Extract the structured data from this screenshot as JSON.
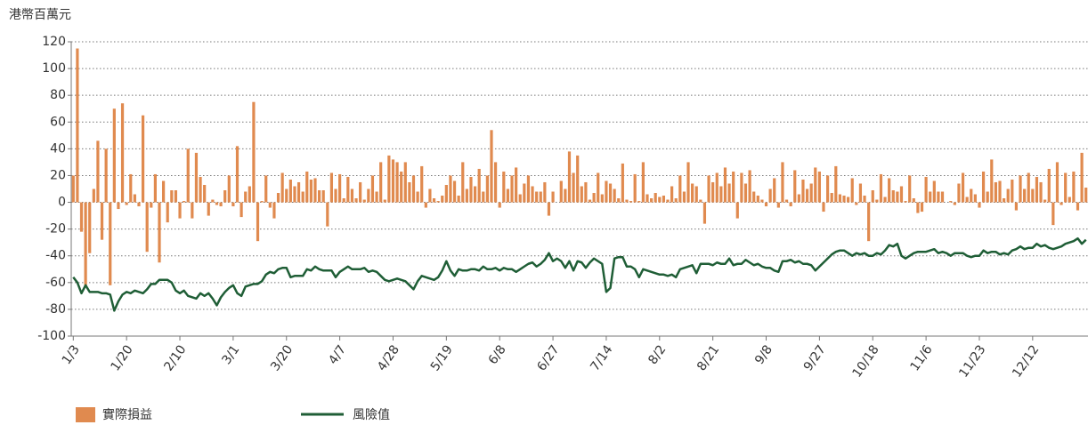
{
  "chart_data": {
    "type": "bar",
    "ylabel": "港幣百萬元",
    "categories": [
      "1/3",
      null,
      null,
      null,
      null,
      null,
      null,
      null,
      null,
      null,
      null,
      null,
      null,
      "1/20",
      null,
      null,
      null,
      null,
      null,
      null,
      null,
      null,
      null,
      null,
      null,
      null,
      "2/10",
      null,
      null,
      null,
      null,
      null,
      null,
      null,
      null,
      null,
      null,
      null,
      null,
      "3/1",
      null,
      null,
      null,
      null,
      null,
      null,
      null,
      null,
      null,
      null,
      null,
      null,
      "3/20",
      null,
      null,
      null,
      null,
      null,
      null,
      null,
      null,
      null,
      null,
      null,
      null,
      "4/7",
      null,
      null,
      null,
      null,
      null,
      null,
      null,
      null,
      null,
      null,
      null,
      null,
      "4/28",
      null,
      null,
      null,
      null,
      null,
      null,
      null,
      null,
      null,
      null,
      null,
      null,
      "5/19",
      null,
      null,
      null,
      null,
      null,
      null,
      null,
      null,
      null,
      null,
      null,
      null,
      "6/8",
      null,
      null,
      null,
      null,
      null,
      null,
      null,
      null,
      null,
      null,
      null,
      null,
      "6/27",
      null,
      null,
      null,
      null,
      null,
      null,
      null,
      null,
      null,
      null,
      null,
      null,
      "7/14",
      null,
      null,
      null,
      null,
      null,
      null,
      null,
      null,
      null,
      null,
      null,
      null,
      "8/2",
      null,
      null,
      null,
      null,
      null,
      null,
      null,
      null,
      null,
      null,
      null,
      null,
      "8/21",
      null,
      null,
      null,
      null,
      null,
      null,
      null,
      null,
      null,
      null,
      null,
      null,
      "9/8",
      null,
      null,
      null,
      null,
      null,
      null,
      null,
      null,
      null,
      null,
      null,
      null,
      "9/27",
      null,
      null,
      null,
      null,
      null,
      null,
      null,
      null,
      null,
      null,
      null,
      null,
      "10/18",
      null,
      null,
      null,
      null,
      null,
      null,
      null,
      null,
      null,
      null,
      null,
      null,
      "11/6",
      null,
      null,
      null,
      null,
      null,
      null,
      null,
      null,
      null,
      null,
      null,
      null,
      "11/23",
      null,
      null,
      null,
      null,
      null,
      null,
      null,
      null,
      null,
      null,
      null,
      null,
      "12/12",
      null,
      null,
      null,
      null,
      null,
      null,
      null,
      null,
      null,
      null,
      null,
      null,
      null
    ],
    "series": [
      {
        "name": "實際損益",
        "type": "bar",
        "color": "#e08a4f",
        "values": [
          20,
          115,
          -22,
          -62,
          -38,
          10,
          46,
          -28,
          40,
          -62,
          70,
          -5,
          74,
          -2,
          21,
          6,
          -3,
          65,
          -37,
          -4,
          21,
          -45,
          16,
          -15,
          9,
          9,
          -12,
          1,
          40,
          -12,
          37,
          19,
          13,
          -10,
          2,
          -2,
          -3,
          9,
          20,
          -3,
          42,
          -11,
          8,
          12,
          75,
          -29,
          1,
          20,
          -4,
          -12,
          7,
          22,
          10,
          17,
          12,
          15,
          8,
          23,
          17,
          18,
          9,
          9,
          -18,
          22,
          10,
          21,
          3,
          19,
          10,
          3,
          15,
          2,
          10,
          20,
          8,
          30,
          2,
          35,
          32,
          30,
          23,
          30,
          15,
          20,
          8,
          27,
          -4,
          10,
          3,
          1,
          5,
          13,
          20,
          16,
          5,
          30,
          10,
          19,
          12,
          25,
          8,
          20,
          54,
          30,
          -4,
          23,
          10,
          20,
          26,
          6,
          14,
          20,
          12,
          8,
          8,
          15,
          -10,
          8,
          0,
          16,
          10,
          38,
          22,
          35,
          12,
          15,
          2,
          7,
          22,
          6,
          16,
          14,
          10,
          3,
          29,
          2,
          1,
          21,
          1,
          30,
          6,
          3,
          7,
          4,
          5,
          2,
          12,
          3,
          20,
          8,
          30,
          14,
          12,
          2,
          -16,
          20,
          15,
          22,
          12,
          26,
          14,
          23,
          -12,
          22,
          14,
          24,
          8,
          5,
          2,
          -3,
          10,
          18,
          -4,
          30,
          2,
          -3,
          24,
          6,
          17,
          10,
          14,
          26,
          23,
          -7,
          20,
          7,
          27,
          6,
          5,
          4,
          18,
          -2,
          14,
          5,
          -29,
          9,
          2,
          21,
          4,
          18,
          9,
          8,
          12,
          1,
          20,
          3,
          -8,
          -7,
          19,
          8,
          16,
          8,
          8,
          0,
          1,
          -2,
          14,
          22,
          4,
          10,
          6,
          -4,
          23,
          8,
          32,
          15,
          16,
          3,
          10,
          17,
          -6,
          20,
          10,
          22,
          10,
          19,
          15,
          2,
          25,
          -17,
          30,
          -2,
          22,
          4,
          23,
          -6,
          37,
          11
        ]
      },
      {
        "name": "風險值",
        "type": "line",
        "color": "#1f5e36",
        "values": [
          -56,
          -60,
          -68,
          -62,
          -67,
          -67,
          -67,
          -68,
          -68,
          -69,
          -81,
          -74,
          -69,
          -67,
          -68,
          -66,
          -67,
          -68,
          -65,
          -61,
          -61,
          -58,
          -58,
          -58,
          -60,
          -66,
          -68,
          -66,
          -70,
          -71,
          -72,
          -68,
          -70,
          -68,
          -72,
          -77,
          -71,
          -67,
          -64,
          -62,
          -68,
          -70,
          -63,
          -62,
          -61,
          -61,
          -59,
          -54,
          -52,
          -53,
          -50,
          -49,
          -49,
          -56,
          -55,
          -55,
          -55,
          -50,
          -51,
          -48,
          -50,
          -51,
          -51,
          -51,
          -56,
          -52,
          -50,
          -48,
          -50,
          -50,
          -50,
          -49,
          -52,
          -51,
          -52,
          -55,
          -58,
          -59,
          -58,
          -57,
          -58,
          -59,
          -62,
          -65,
          -59,
          -55,
          -56,
          -57,
          -58,
          -56,
          -51,
          -44,
          -51,
          -55,
          -50,
          -51,
          -51,
          -50,
          -50,
          -51,
          -48,
          -50,
          -50,
          -49,
          -51,
          -49,
          -50,
          -50,
          -52,
          -50,
          -48,
          -46,
          -45,
          -48,
          -46,
          -43,
          -38,
          -44,
          -42,
          -44,
          -49,
          -44,
          -51,
          -44,
          -45,
          -49,
          -45,
          -42,
          -44,
          -46,
          -67,
          -64,
          -42,
          -41,
          -41,
          -48,
          -48,
          -50,
          -56,
          -50,
          -51,
          -52,
          -53,
          -54,
          -54,
          -55,
          -54,
          -56,
          -50,
          -49,
          -48,
          -47,
          -53,
          -46,
          -46,
          -46,
          -47,
          -45,
          -46,
          -46,
          -42,
          -47,
          -46,
          -46,
          -43,
          -45,
          -47,
          -46,
          -48,
          -49,
          -49,
          -51,
          -52,
          -44,
          -44,
          -43,
          -45,
          -44,
          -46,
          -46,
          -47,
          -51,
          -48,
          -45,
          -42,
          -39,
          -37,
          -36,
          -36,
          -38,
          -40,
          -38,
          -39,
          -38,
          -40,
          -40,
          -38,
          -39,
          -36,
          -32,
          -33,
          -31,
          -40,
          -42,
          -40,
          -38,
          -37,
          -37,
          -37,
          -36,
          -35,
          -38,
          -37,
          -38,
          -40,
          -38,
          -38,
          -38,
          -40,
          -41,
          -40,
          -40,
          -36,
          -38,
          -37,
          -37,
          -39,
          -38,
          -39,
          -36,
          -35,
          -33,
          -35,
          -34,
          -34,
          -31,
          -33,
          -32,
          -34,
          -35,
          -34,
          -33,
          -31,
          -30,
          -29,
          -27,
          -31,
          -28
        ]
      }
    ],
    "ylim": [
      -100,
      120
    ],
    "yticks": [
      120,
      100,
      80,
      60,
      40,
      20,
      0,
      -20,
      -40,
      -60,
      -80,
      -100
    ],
    "grid": true
  }
}
